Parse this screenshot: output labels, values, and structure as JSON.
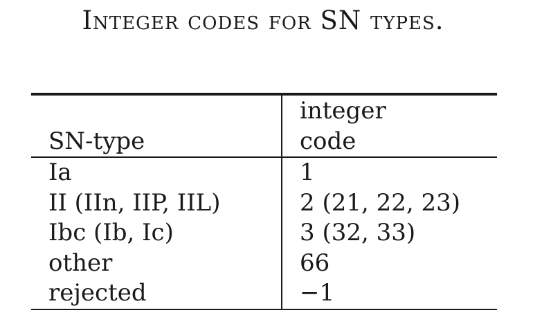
{
  "caption": "Integer codes for SN types.",
  "table": {
    "headers": {
      "col1": "SN-type",
      "col2_line1": "integer",
      "col2_line2": "code"
    },
    "rows": [
      {
        "type": "Ia",
        "code": "1"
      },
      {
        "type": "II (IIn, IIP, IIL)",
        "code": "2 (21, 22, 23)"
      },
      {
        "type": "Ibc (Ib, Ic)",
        "code": "3 (32, 33)"
      },
      {
        "type": "other",
        "code": "66"
      },
      {
        "type": "rejected",
        "code": "−1"
      }
    ]
  }
}
